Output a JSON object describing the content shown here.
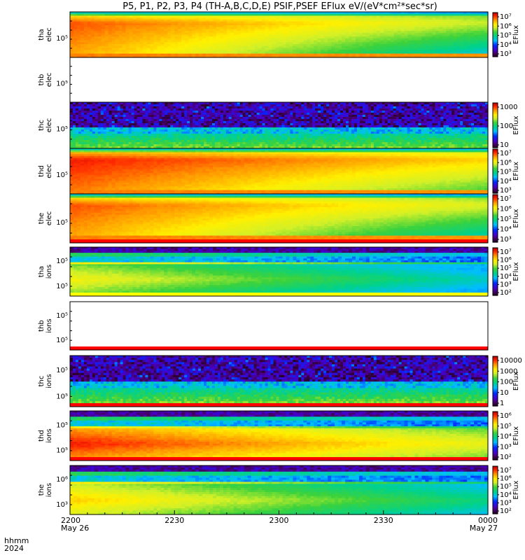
{
  "title": "P5, P1, P2, P3, P4 (TH-A,B,C,D,E) PSIF,PSEF EFlux eV/(eV*cm²*sec*sr)",
  "time_axis": {
    "row1_label": "hhmm",
    "row2_label": "2024",
    "ticks": [
      {
        "t": 0,
        "hhmm": "2200",
        "date": "May 26"
      },
      {
        "t": 30,
        "hhmm": "2230",
        "date": ""
      },
      {
        "t": 60,
        "hhmm": "2300",
        "date": ""
      },
      {
        "t": 90,
        "hhmm": "2330",
        "date": ""
      },
      {
        "t": 120,
        "hhmm": "0000",
        "date": "May 27"
      }
    ]
  },
  "colors": {
    "bar_red": "#ff0000",
    "bar_yellow": "#ffff00",
    "frame": "#000000",
    "background": "#ffffff"
  },
  "panels": [
    {
      "id": "tha-elec",
      "probe": "tha",
      "species": "elec",
      "ytick": "10⁵",
      "type": "full",
      "s": 0.92,
      "tr": 0.5,
      "bot_bar": null,
      "colorbar": {
        "label": "EFlux",
        "labels": [
          "10⁷",
          "10⁶",
          "10⁵",
          "10⁴",
          "10³"
        ]
      }
    },
    {
      "id": "thb-elec",
      "probe": "thb",
      "species": "elec",
      "ytick": "10⁵",
      "type": "empty",
      "bot_bar": null,
      "colorbar": null
    },
    {
      "id": "thc-elec",
      "probe": "thc",
      "species": "elec",
      "ytick": "10⁵",
      "type": "noise",
      "bot_bar": null,
      "colorbar": {
        "label": "EFlux",
        "labels": [
          "1000",
          "100",
          "10"
        ]
      }
    },
    {
      "id": "thd-elec",
      "probe": "thd",
      "species": "elec",
      "ytick": "10⁵",
      "type": "full",
      "s": 0.97,
      "tr": 0.35,
      "bot_bar": null,
      "colorbar": {
        "label": "EFlux",
        "labels": [
          "10⁷",
          "10⁶",
          "10⁵",
          "10⁴",
          "10³"
        ]
      }
    },
    {
      "id": "the-elec",
      "probe": "the",
      "species": "elec",
      "ytick": "10⁵",
      "type": "full",
      "s": 0.92,
      "tr": 0.45,
      "bot_bar": "#ff0000",
      "colorbar": {
        "label": "EFlux",
        "labels": [
          "10⁷",
          "10⁶",
          "10⁵",
          "10⁴",
          "10³"
        ]
      }
    },
    {
      "id": "tha-ions",
      "probe": "tha",
      "species": "ions",
      "ytick": "10⁵",
      "ytick2": "10⁵",
      "type": "ions",
      "s": 0.72,
      "tr": 0.3,
      "bot_bar": "#ffff00",
      "colorbar": {
        "label": "EFlux",
        "labels": [
          "10⁷",
          "10⁶",
          "10⁵",
          "10⁴",
          "10³",
          "10²"
        ]
      }
    },
    {
      "id": "thb-ions",
      "probe": "thb",
      "species": "ions",
      "ytick": "10⁵",
      "ytick2": "10⁵",
      "type": "empty",
      "bot_bar": "#ff0000",
      "colorbar": null
    },
    {
      "id": "thc-ions",
      "probe": "thc",
      "species": "ions",
      "ytick": "10⁵",
      "ytick2": "10⁵",
      "type": "noise",
      "bot_bar": "#ff0000",
      "colorbar": {
        "label": "EFlux",
        "labels": [
          "10000",
          "1000",
          "100",
          "10",
          "1"
        ]
      }
    },
    {
      "id": "thd-ions",
      "probe": "thd",
      "species": "ions",
      "ytick": "10⁵",
      "ytick2": "10⁵",
      "type": "ions",
      "s": 0.95,
      "tr": 0.25,
      "bot_bar": "#ff0000",
      "colorbar": {
        "label": "EFlux",
        "labels": [
          "10⁶",
          "10⁵",
          "10⁴",
          "10³",
          "10²"
        ]
      }
    },
    {
      "id": "the-ions",
      "probe": "the",
      "species": "ions",
      "ytick": "10⁶",
      "ytick2": "10³",
      "type": "ions",
      "s": 0.78,
      "tr": 0.3,
      "bot_bar": null,
      "colorbar": {
        "label": "EFlux",
        "labels": [
          "10⁷",
          "10⁶",
          "10⁵",
          "10⁴",
          "10³",
          "10²"
        ]
      }
    }
  ],
  "chart_data": {
    "type": "heatmap",
    "title": "P5, P1, P2, P3, P4 (TH-A,B,C,D,E) PSIF,PSEF EFlux eV/(eV*cm²*sec*sr)",
    "x_range": [
      "2024 May 26 22:00",
      "2024 May 27 00:00"
    ],
    "series": [
      "tha elec",
      "thb elec",
      "thc elec",
      "thd elec",
      "the elec",
      "tha ions",
      "thb ions",
      "thc ions",
      "thd ions",
      "the ions"
    ],
    "z_label": "EFlux",
    "log_scale": true,
    "colormap": "rainbow (purple-blue-cyan-green-yellow-red)"
  }
}
